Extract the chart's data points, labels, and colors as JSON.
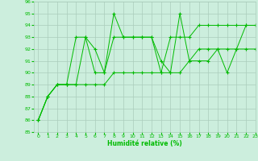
{
  "xlabel": "Humidité relative (%)",
  "xlim": [
    -0.5,
    23
  ],
  "ylim": [
    85,
    96
  ],
  "yticks": [
    85,
    86,
    87,
    88,
    89,
    90,
    91,
    92,
    93,
    94,
    95,
    96
  ],
  "xticks": [
    0,
    1,
    2,
    3,
    4,
    5,
    6,
    7,
    8,
    9,
    10,
    11,
    12,
    13,
    14,
    15,
    16,
    17,
    18,
    19,
    20,
    21,
    22,
    23
  ],
  "background_color": "#cceedd",
  "grid_color": "#aaccbb",
  "line_color": "#00bb00",
  "series": [
    {
      "x": [
        0,
        1,
        2,
        3,
        4,
        5,
        6,
        7,
        8,
        9,
        10,
        11,
        12,
        13,
        14,
        15,
        16,
        17,
        18,
        19,
        20,
        21,
        22,
        23
      ],
      "y": [
        86,
        88,
        89,
        89,
        93,
        93,
        92,
        90,
        95,
        93,
        93,
        93,
        93,
        91,
        90,
        95,
        91,
        92,
        92,
        92,
        90,
        92,
        94,
        94
      ]
    },
    {
      "x": [
        0,
        1,
        2,
        3,
        4,
        5,
        6,
        7,
        8,
        9,
        10,
        11,
        12,
        13,
        14,
        15,
        16,
        17,
        18,
        19,
        20,
        21,
        22,
        23
      ],
      "y": [
        86,
        88,
        89,
        89,
        89,
        93,
        90,
        90,
        93,
        93,
        93,
        93,
        93,
        90,
        93,
        93,
        93,
        94,
        94,
        94,
        94,
        94,
        94,
        94
      ]
    },
    {
      "x": [
        0,
        1,
        2,
        3,
        4,
        5,
        6,
        7,
        8,
        9,
        10,
        11,
        12,
        13,
        14,
        15,
        16,
        17,
        18,
        19,
        20,
        21,
        22,
        23
      ],
      "y": [
        86,
        88,
        89,
        89,
        89,
        89,
        89,
        89,
        90,
        90,
        90,
        90,
        90,
        90,
        90,
        90,
        91,
        91,
        91,
        92,
        92,
        92,
        92,
        92
      ]
    }
  ]
}
